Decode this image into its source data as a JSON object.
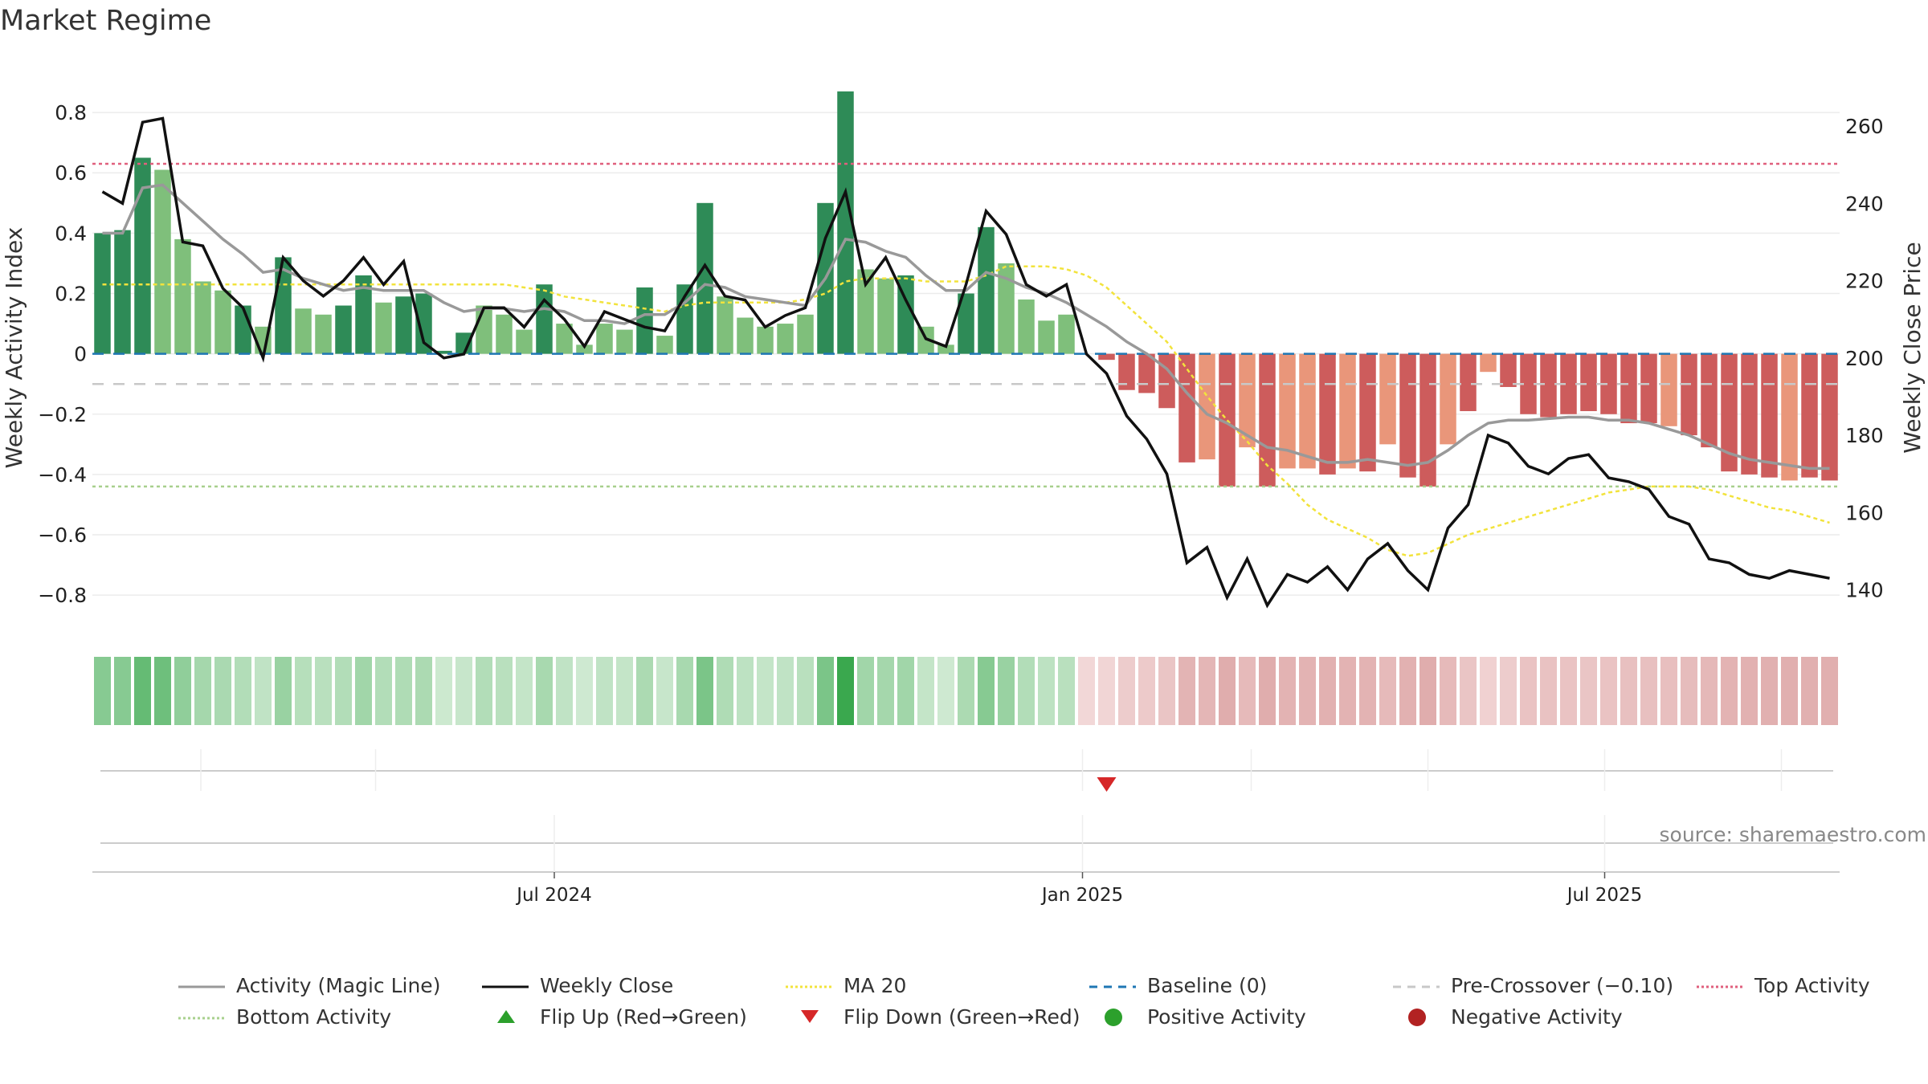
{
  "chart_data": {
    "type": "bar",
    "title": "Market Regime",
    "ylabel_left": "Weekly Activity Index",
    "ylabel_right": "Weekly Close Price",
    "source": "source: sharemaestro.com",
    "y_left_ticks": [
      {
        "v": 0.8,
        "label": "0.8"
      },
      {
        "v": 0.6,
        "label": "0.6"
      },
      {
        "v": 0.4,
        "label": "0.4"
      },
      {
        "v": 0.2,
        "label": "0.2"
      },
      {
        "v": 0,
        "label": "0"
      },
      {
        "v": -0.2,
        "label": "−0.2"
      },
      {
        "v": -0.4,
        "label": "−0.4"
      },
      {
        "v": -0.6,
        "label": "−0.6"
      },
      {
        "v": -0.8,
        "label": "−0.8"
      }
    ],
    "y_right_ticks": [
      {
        "v": 260,
        "label": "260"
      },
      {
        "v": 240,
        "label": "240"
      },
      {
        "v": 220,
        "label": "220"
      },
      {
        "v": 200,
        "label": "200"
      },
      {
        "v": 180,
        "label": "180"
      },
      {
        "v": 160,
        "label": "160"
      },
      {
        "v": 140,
        "label": "140"
      }
    ],
    "x_ticks": [
      {
        "week": 22.5,
        "label": "Jul 2024"
      },
      {
        "week": 48.8,
        "label": "Jan 2025"
      },
      {
        "week": 74.8,
        "label": "Jul 2025"
      }
    ],
    "ylim_left": [
      -0.93,
      0.96
    ],
    "ylim_right": [
      128.5,
      276
    ],
    "weeks": 87,
    "activity": [
      0.4,
      0.41,
      0.65,
      0.61,
      0.38,
      0.24,
      0.21,
      0.16,
      0.09,
      0.32,
      0.15,
      0.13,
      0.16,
      0.26,
      0.17,
      0.19,
      0.2,
      0.01,
      0.07,
      0.16,
      0.13,
      0.08,
      0.23,
      0.1,
      0.03,
      0.1,
      0.08,
      0.22,
      0.06,
      0.23,
      0.5,
      0.19,
      0.12,
      0.09,
      0.1,
      0.13,
      0.5,
      0.87,
      0.28,
      0.25,
      0.26,
      0.09,
      0.03,
      0.2,
      0.42,
      0.3,
      0.18,
      0.11,
      0.13,
      0.0,
      -0.02,
      -0.12,
      -0.13,
      -0.18,
      -0.36,
      -0.35,
      -0.44,
      -0.31,
      -0.44,
      -0.38,
      -0.38,
      -0.4,
      -0.38,
      -0.39,
      -0.3,
      -0.41,
      -0.44,
      -0.3,
      -0.19,
      -0.06,
      -0.11,
      -0.2,
      -0.21,
      -0.2,
      -0.19,
      -0.2,
      -0.23,
      -0.23,
      -0.24,
      -0.27,
      -0.31,
      -0.39,
      -0.4,
      -0.41,
      -0.42,
      -0.41,
      -0.42
    ],
    "magic_line": [
      0.4,
      0.4,
      0.55,
      0.56,
      0.5,
      0.44,
      0.38,
      0.33,
      0.27,
      0.28,
      0.25,
      0.23,
      0.21,
      0.22,
      0.21,
      0.21,
      0.21,
      0.17,
      0.14,
      0.15,
      0.15,
      0.14,
      0.15,
      0.14,
      0.11,
      0.11,
      0.1,
      0.13,
      0.13,
      0.17,
      0.23,
      0.22,
      0.19,
      0.18,
      0.17,
      0.16,
      0.25,
      0.38,
      0.37,
      0.34,
      0.32,
      0.26,
      0.21,
      0.21,
      0.27,
      0.25,
      0.22,
      0.2,
      0.17,
      0.13,
      0.09,
      0.04,
      0.0,
      -0.05,
      -0.13,
      -0.2,
      -0.23,
      -0.27,
      -0.31,
      -0.32,
      -0.34,
      -0.36,
      -0.36,
      -0.35,
      -0.36,
      -0.37,
      -0.36,
      -0.32,
      -0.27,
      -0.23,
      -0.22,
      -0.22,
      -0.215,
      -0.21,
      -0.21,
      -0.22,
      -0.22,
      -0.23,
      -0.25,
      -0.27,
      -0.3,
      -0.33,
      -0.35,
      -0.36,
      -0.37,
      -0.38,
      -0.38
    ],
    "ma20": [
      0.23,
      0.23,
      0.23,
      0.23,
      0.23,
      0.23,
      0.23,
      0.23,
      0.23,
      0.23,
      0.23,
      0.23,
      0.23,
      0.23,
      0.23,
      0.23,
      0.23,
      0.23,
      0.23,
      0.23,
      0.23,
      0.22,
      0.21,
      0.19,
      0.18,
      0.17,
      0.16,
      0.15,
      0.14,
      0.16,
      0.17,
      0.17,
      0.17,
      0.17,
      0.17,
      0.18,
      0.2,
      0.24,
      0.25,
      0.25,
      0.25,
      0.24,
      0.24,
      0.24,
      0.26,
      0.29,
      0.29,
      0.29,
      0.28,
      0.26,
      0.22,
      0.16,
      0.1,
      0.04,
      -0.05,
      -0.14,
      -0.22,
      -0.29,
      -0.37,
      -0.43,
      -0.5,
      -0.55,
      -0.58,
      -0.61,
      -0.65,
      -0.67,
      -0.66,
      -0.63,
      -0.6,
      -0.58,
      -0.56,
      -0.54,
      -0.52,
      -0.5,
      -0.48,
      -0.46,
      -0.45,
      -0.44,
      -0.44,
      -0.44,
      -0.45,
      -0.47,
      -0.49,
      -0.51,
      -0.52,
      -0.54,
      -0.56
    ],
    "weekly_close": [
      243,
      240,
      261,
      262,
      230,
      229,
      218,
      213,
      200,
      226,
      220,
      216,
      220,
      226,
      219,
      225,
      204,
      200,
      201,
      213,
      213,
      208,
      215,
      210,
      203,
      212,
      210,
      208,
      207,
      216,
      224,
      216,
      215,
      208,
      211,
      213,
      231,
      243,
      219,
      226,
      215,
      205,
      203,
      219,
      238,
      232,
      219,
      216,
      219,
      201,
      196,
      185,
      179,
      170,
      147,
      151,
      138,
      148,
      136,
      144,
      142,
      146,
      140,
      148,
      152,
      145,
      140,
      156,
      162,
      180,
      178,
      172,
      170,
      174,
      175,
      169,
      168,
      166,
      159,
      157,
      148,
      147,
      144,
      143,
      145,
      144,
      143
    ],
    "strip_strength": [
      0.55,
      0.55,
      0.75,
      0.7,
      0.5,
      0.38,
      0.35,
      0.3,
      0.22,
      0.45,
      0.28,
      0.26,
      0.3,
      0.4,
      0.3,
      0.32,
      0.34,
      0.15,
      0.18,
      0.3,
      0.26,
      0.2,
      0.36,
      0.22,
      0.14,
      0.22,
      0.2,
      0.34,
      0.18,
      0.36,
      0.62,
      0.32,
      0.24,
      0.2,
      0.22,
      0.26,
      0.62,
      1.0,
      0.4,
      0.38,
      0.4,
      0.2,
      0.14,
      0.34,
      0.55,
      0.45,
      0.3,
      0.24,
      0.26,
      0.1,
      0.12,
      0.22,
      0.24,
      0.3,
      0.48,
      0.46,
      0.56,
      0.42,
      0.56,
      0.5,
      0.5,
      0.52,
      0.5,
      0.5,
      0.42,
      0.52,
      0.56,
      0.42,
      0.3,
      0.16,
      0.22,
      0.32,
      0.33,
      0.32,
      0.3,
      0.32,
      0.35,
      0.35,
      0.36,
      0.4,
      0.44,
      0.5,
      0.52,
      0.53,
      0.54,
      0.53,
      0.54
    ],
    "flip_down_weeks": [
      50
    ],
    "flip_up_weeks": [],
    "levels": {
      "top_activity": 0.63,
      "bottom_activity": -0.44,
      "pre_crossover": -0.1,
      "baseline": 0
    },
    "colors": {
      "pos_strong": "#2e8b57",
      "pos_weak": "#7fbf7b",
      "neg_strong": "#cd5c5c",
      "neg_weak": "#e9967a",
      "magic_line": "#999999",
      "weekly_close": "#111111",
      "ma20": "#f2e33c",
      "baseline": "#1f77b4",
      "pre_crossover": "#c8c8c8",
      "top": "#e0607e",
      "bottom": "#a8d08d",
      "flip_up": "#2ca02c",
      "flip_down": "#d62728",
      "pos_dot": "#2ca02c",
      "neg_dot": "#b22222"
    },
    "legend": [
      {
        "label": "Activity (Magic Line)",
        "kind": "line",
        "color": "#999999",
        "dash": ""
      },
      {
        "label": "Weekly Close",
        "kind": "line",
        "color": "#111111",
        "dash": ""
      },
      {
        "label": "MA 20",
        "kind": "line",
        "color": "#f2e33c",
        "dash": "3,3"
      },
      {
        "label": "Baseline (0)",
        "kind": "line",
        "color": "#1f77b4",
        "dash": "10,8"
      },
      {
        "label": "Pre-Crossover (−0.10)",
        "kind": "line",
        "color": "#c8c8c8",
        "dash": "10,8"
      },
      {
        "label": "Top Activity",
        "kind": "line",
        "color": "#e0607e",
        "dash": "3,3"
      },
      {
        "label": "Bottom Activity",
        "kind": "line",
        "color": "#a8d08d",
        "dash": "3,3"
      },
      {
        "label": "Flip Up (Red→Green)",
        "kind": "tri-up",
        "color": "#2ca02c"
      },
      {
        "label": "Flip Down (Green→Red)",
        "kind": "tri-down",
        "color": "#d62728"
      },
      {
        "label": "Positive Activity",
        "kind": "dot",
        "color": "#2ca02c"
      },
      {
        "label": "Negative Activity",
        "kind": "dot",
        "color": "#b22222"
      }
    ]
  }
}
